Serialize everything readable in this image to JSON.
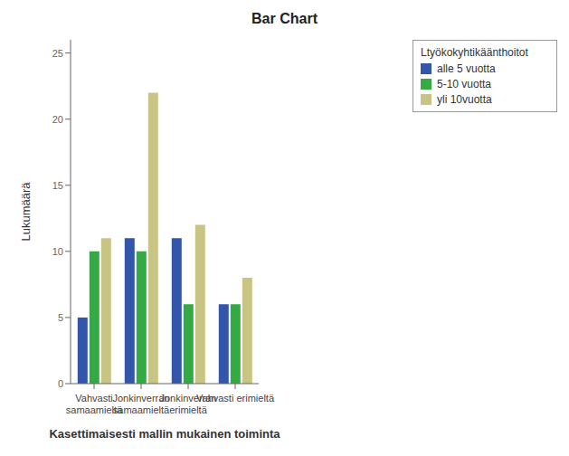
{
  "chart_data": {
    "type": "bar",
    "title": "Bar Chart",
    "x_label": "Kasettimaisesti mallin mukainen toiminta",
    "y_label": "Lukumäärä",
    "legend_title": "Ltyökokyhtikäänthoitot",
    "categories": [
      "Vahvasti\nsamaamieltä",
      "Jonkinverran\nsamaamieltä",
      "Jonkinverran\nerimieltä",
      "Vahvasti erimieltä"
    ],
    "series": [
      {
        "name": "alle 5 vuotta",
        "color": "#3355AA",
        "values": [
          5,
          11,
          11,
          6
        ]
      },
      {
        "name": "5-10 vuotta",
        "color": "#33AA44",
        "values": [
          10,
          10,
          6,
          6
        ]
      },
      {
        "name": "yli 10vuotta",
        "color": "#C8C483",
        "values": [
          11,
          22,
          12,
          8
        ]
      }
    ],
    "ylim": [
      0,
      26
    ],
    "yticks": [
      0,
      5,
      10,
      15,
      20,
      25
    ],
    "grid": false,
    "legend": "upper right"
  }
}
